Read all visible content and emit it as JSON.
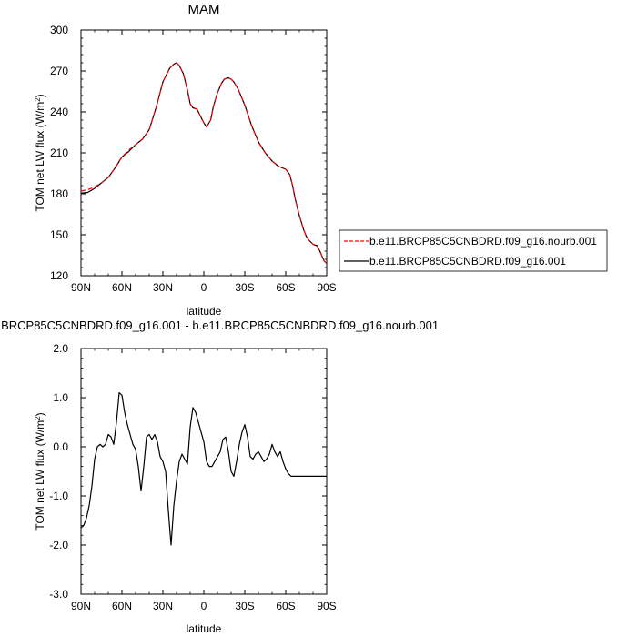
{
  "chart_data": [
    {
      "type": "line",
      "title": "MAM",
      "xlabel": "latitude",
      "ylabel": "TOM net LW flux (W/m",
      "ylabel_sup": "2",
      "ylabel_close": ")",
      "xlim": [
        90,
        -90
      ],
      "ylim": [
        120,
        300
      ],
      "x_ticks": [
        90,
        60,
        30,
        0,
        -30,
        -60,
        -90
      ],
      "x_tick_labels": [
        "90N",
        "60N",
        "30N",
        "0",
        "30S",
        "60S",
        "90S"
      ],
      "y_ticks": [
        120,
        150,
        180,
        210,
        240,
        270,
        300
      ],
      "y_tick_labels": [
        "120",
        "150",
        "180",
        "210",
        "240",
        "270",
        "300"
      ],
      "grid": false,
      "legend_position": "right",
      "series": [
        {
          "name": "b.e11.BRCP85C5CNBDRD.f09_g16.nourb.001",
          "color": "#ff0000",
          "dash": "dashed",
          "x": [
            90,
            85,
            80,
            75,
            70,
            65,
            60,
            55,
            50,
            45,
            40,
            35,
            30,
            25,
            22,
            20,
            18,
            15,
            12,
            10,
            8,
            5,
            3,
            0,
            -2,
            -5,
            -7,
            -10,
            -13,
            -15,
            -18,
            -20,
            -22,
            -25,
            -30,
            -35,
            -40,
            -45,
            -50,
            -55,
            -60,
            -63,
            -65,
            -67,
            -70,
            -73,
            -75,
            -77,
            -80,
            -83,
            -85,
            -88,
            -90
          ],
          "y": [
            182,
            183,
            185,
            188,
            192,
            199,
            207,
            212,
            216,
            220,
            227,
            243,
            262,
            272,
            275,
            276,
            274,
            268,
            256,
            246,
            243,
            242,
            238,
            232,
            229,
            234,
            244,
            254,
            261,
            264,
            265,
            264,
            262,
            257,
            245,
            230,
            218,
            210,
            204,
            200,
            198,
            194,
            186,
            176,
            164,
            154,
            149,
            146,
            143,
            142,
            138,
            131,
            129
          ]
        },
        {
          "name": "b.e11.BRCP85C5CNBDRD.f09_g16.001",
          "color": "#000000",
          "dash": "solid",
          "x": [
            90,
            85,
            80,
            75,
            70,
            65,
            60,
            55,
            50,
            45,
            40,
            35,
            30,
            25,
            22,
            20,
            18,
            15,
            12,
            10,
            8,
            5,
            3,
            0,
            -2,
            -5,
            -7,
            -10,
            -13,
            -15,
            -18,
            -20,
            -22,
            -25,
            -30,
            -35,
            -40,
            -45,
            -50,
            -55,
            -60,
            -63,
            -65,
            -67,
            -70,
            -73,
            -75,
            -77,
            -80,
            -83,
            -85,
            -88,
            -90
          ],
          "y": [
            180.5,
            181,
            184,
            188,
            192,
            199,
            207,
            211,
            216,
            220,
            227,
            243,
            262,
            272,
            275,
            276,
            274,
            268,
            256,
            246,
            243,
            242,
            238,
            232,
            229,
            234,
            244,
            254,
            261,
            264,
            265,
            264,
            262,
            257,
            245,
            230,
            218,
            210,
            204,
            200,
            198,
            194,
            186,
            176,
            164,
            154,
            149,
            146,
            143,
            142,
            138,
            131,
            129
          ]
        }
      ]
    },
    {
      "type": "line",
      "title": "b.e11.BRCP85C5CNBDRD.f09_g16.001 - b.e11.BRCP85C5CNBDRD.f09_g16.nourb.001",
      "xlabel": "latitude",
      "ylabel": "TOM net LW flux (W/m",
      "ylabel_sup": "2",
      "ylabel_close": ")",
      "xlim": [
        90,
        -90
      ],
      "ylim": [
        -3.0,
        2.0
      ],
      "x_ticks": [
        90,
        60,
        30,
        0,
        -30,
        -60,
        -90
      ],
      "x_tick_labels": [
        "90N",
        "60N",
        "30N",
        "0",
        "30S",
        "60S",
        "90S"
      ],
      "y_ticks": [
        -3.0,
        -2.0,
        -1.0,
        0.0,
        1.0,
        2.0
      ],
      "y_tick_labels": [
        "-3.0",
        "-2.0",
        "-1.0",
        "0.0",
        "1.0",
        "2.0"
      ],
      "grid": false,
      "series": [
        {
          "color": "#000000",
          "dash": "solid",
          "x": [
            90,
            88,
            86,
            84,
            82,
            80,
            78,
            76,
            74,
            72,
            70,
            68,
            66,
            64,
            62,
            60,
            58,
            56,
            54,
            52,
            50,
            48,
            46,
            44,
            42,
            40,
            38,
            36,
            34,
            32,
            30,
            28,
            26,
            24,
            22,
            20,
            18,
            16,
            14,
            12,
            10,
            8,
            6,
            4,
            2,
            0,
            -2,
            -4,
            -6,
            -8,
            -10,
            -12,
            -14,
            -16,
            -18,
            -20,
            -22,
            -24,
            -26,
            -28,
            -30,
            -32,
            -34,
            -36,
            -38,
            -40,
            -42,
            -44,
            -46,
            -48,
            -50,
            -52,
            -54,
            -56,
            -58,
            -60,
            -62,
            -64,
            -66,
            -68,
            -70,
            -72,
            -74,
            -76,
            -78,
            -80,
            -82,
            -84,
            -86,
            -88,
            -90
          ],
          "y": [
            -1.65,
            -1.6,
            -1.45,
            -1.2,
            -0.8,
            -0.25,
            0.0,
            0.05,
            0.0,
            0.05,
            0.25,
            0.2,
            0.05,
            0.5,
            1.1,
            1.05,
            0.7,
            0.45,
            0.25,
            0.05,
            -0.05,
            -0.4,
            -0.9,
            -0.4,
            0.2,
            0.25,
            0.15,
            0.25,
            0.1,
            -0.2,
            -0.3,
            -0.5,
            -1.3,
            -2.0,
            -1.2,
            -0.7,
            -0.3,
            -0.15,
            -0.25,
            -0.35,
            0.4,
            0.8,
            0.7,
            0.5,
            0.3,
            0.1,
            -0.3,
            -0.4,
            -0.4,
            -0.3,
            -0.2,
            -0.1,
            0.15,
            0.2,
            -0.1,
            -0.5,
            -0.6,
            -0.3,
            0.05,
            0.3,
            0.45,
            0.2,
            -0.2,
            -0.25,
            -0.15,
            -0.1,
            -0.2,
            -0.3,
            -0.25,
            -0.15,
            0.05,
            -0.1,
            -0.2,
            -0.1,
            -0.3,
            -0.45,
            -0.55,
            -0.6,
            -0.6,
            -0.6,
            -0.6,
            -0.6,
            -0.6,
            -0.6,
            -0.6,
            -0.6,
            -0.6,
            -0.6,
            -0.6,
            -0.6,
            -0.6
          ]
        }
      ]
    }
  ]
}
